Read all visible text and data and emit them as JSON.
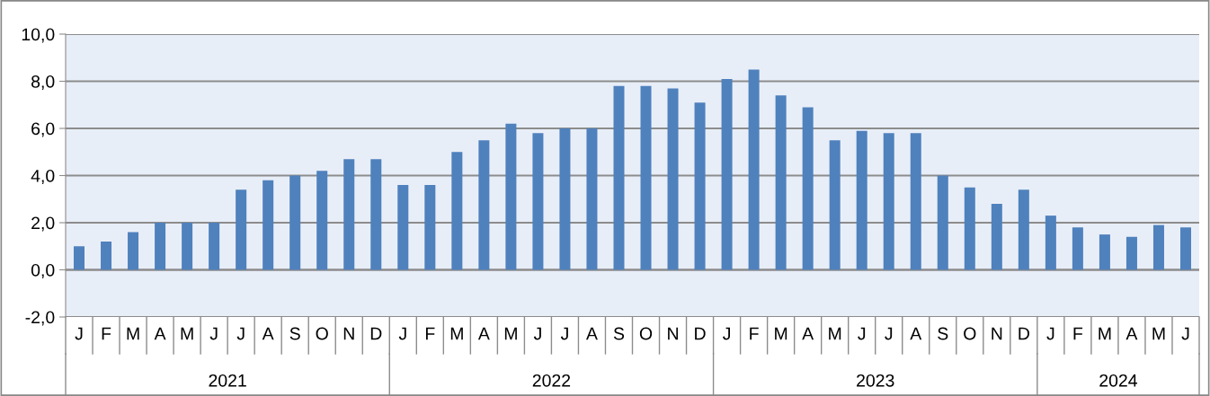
{
  "chart_data": {
    "type": "bar",
    "categories": [
      "J",
      "F",
      "M",
      "A",
      "M",
      "J",
      "J",
      "A",
      "S",
      "O",
      "N",
      "D",
      "J",
      "F",
      "M",
      "A",
      "M",
      "J",
      "J",
      "A",
      "S",
      "O",
      "N",
      "D",
      "J",
      "F",
      "M",
      "A",
      "M",
      "J",
      "J",
      "A",
      "S",
      "O",
      "N",
      "D",
      "J",
      "F",
      "M",
      "A",
      "M",
      "J"
    ],
    "values": [
      1.0,
      1.2,
      1.6,
      2.0,
      2.0,
      2.0,
      3.4,
      3.8,
      4.0,
      4.2,
      4.7,
      4.7,
      3.6,
      3.6,
      5.0,
      5.5,
      6.2,
      5.8,
      6.0,
      6.0,
      7.8,
      7.8,
      7.7,
      7.1,
      8.1,
      8.5,
      7.4,
      6.9,
      5.5,
      5.9,
      5.8,
      5.8,
      4.0,
      3.5,
      2.8,
      3.4,
      2.3,
      1.8,
      1.5,
      1.4,
      1.9,
      1.8
    ],
    "color": "#4f81bd",
    "ylim": [
      -2,
      10
    ],
    "yticks": [
      {
        "value": -2,
        "label": "-2,0"
      },
      {
        "value": 0,
        "label": "0,0"
      },
      {
        "value": 2,
        "label": "2,0"
      },
      {
        "value": 4,
        "label": "4,0"
      },
      {
        "value": 6,
        "label": "6,0"
      },
      {
        "value": 8,
        "label": "8,0"
      },
      {
        "value": 10,
        "label": "10,0"
      }
    ],
    "grid": "y",
    "annotations": [
      "2021",
      "2022",
      "2023",
      "2024"
    ]
  }
}
